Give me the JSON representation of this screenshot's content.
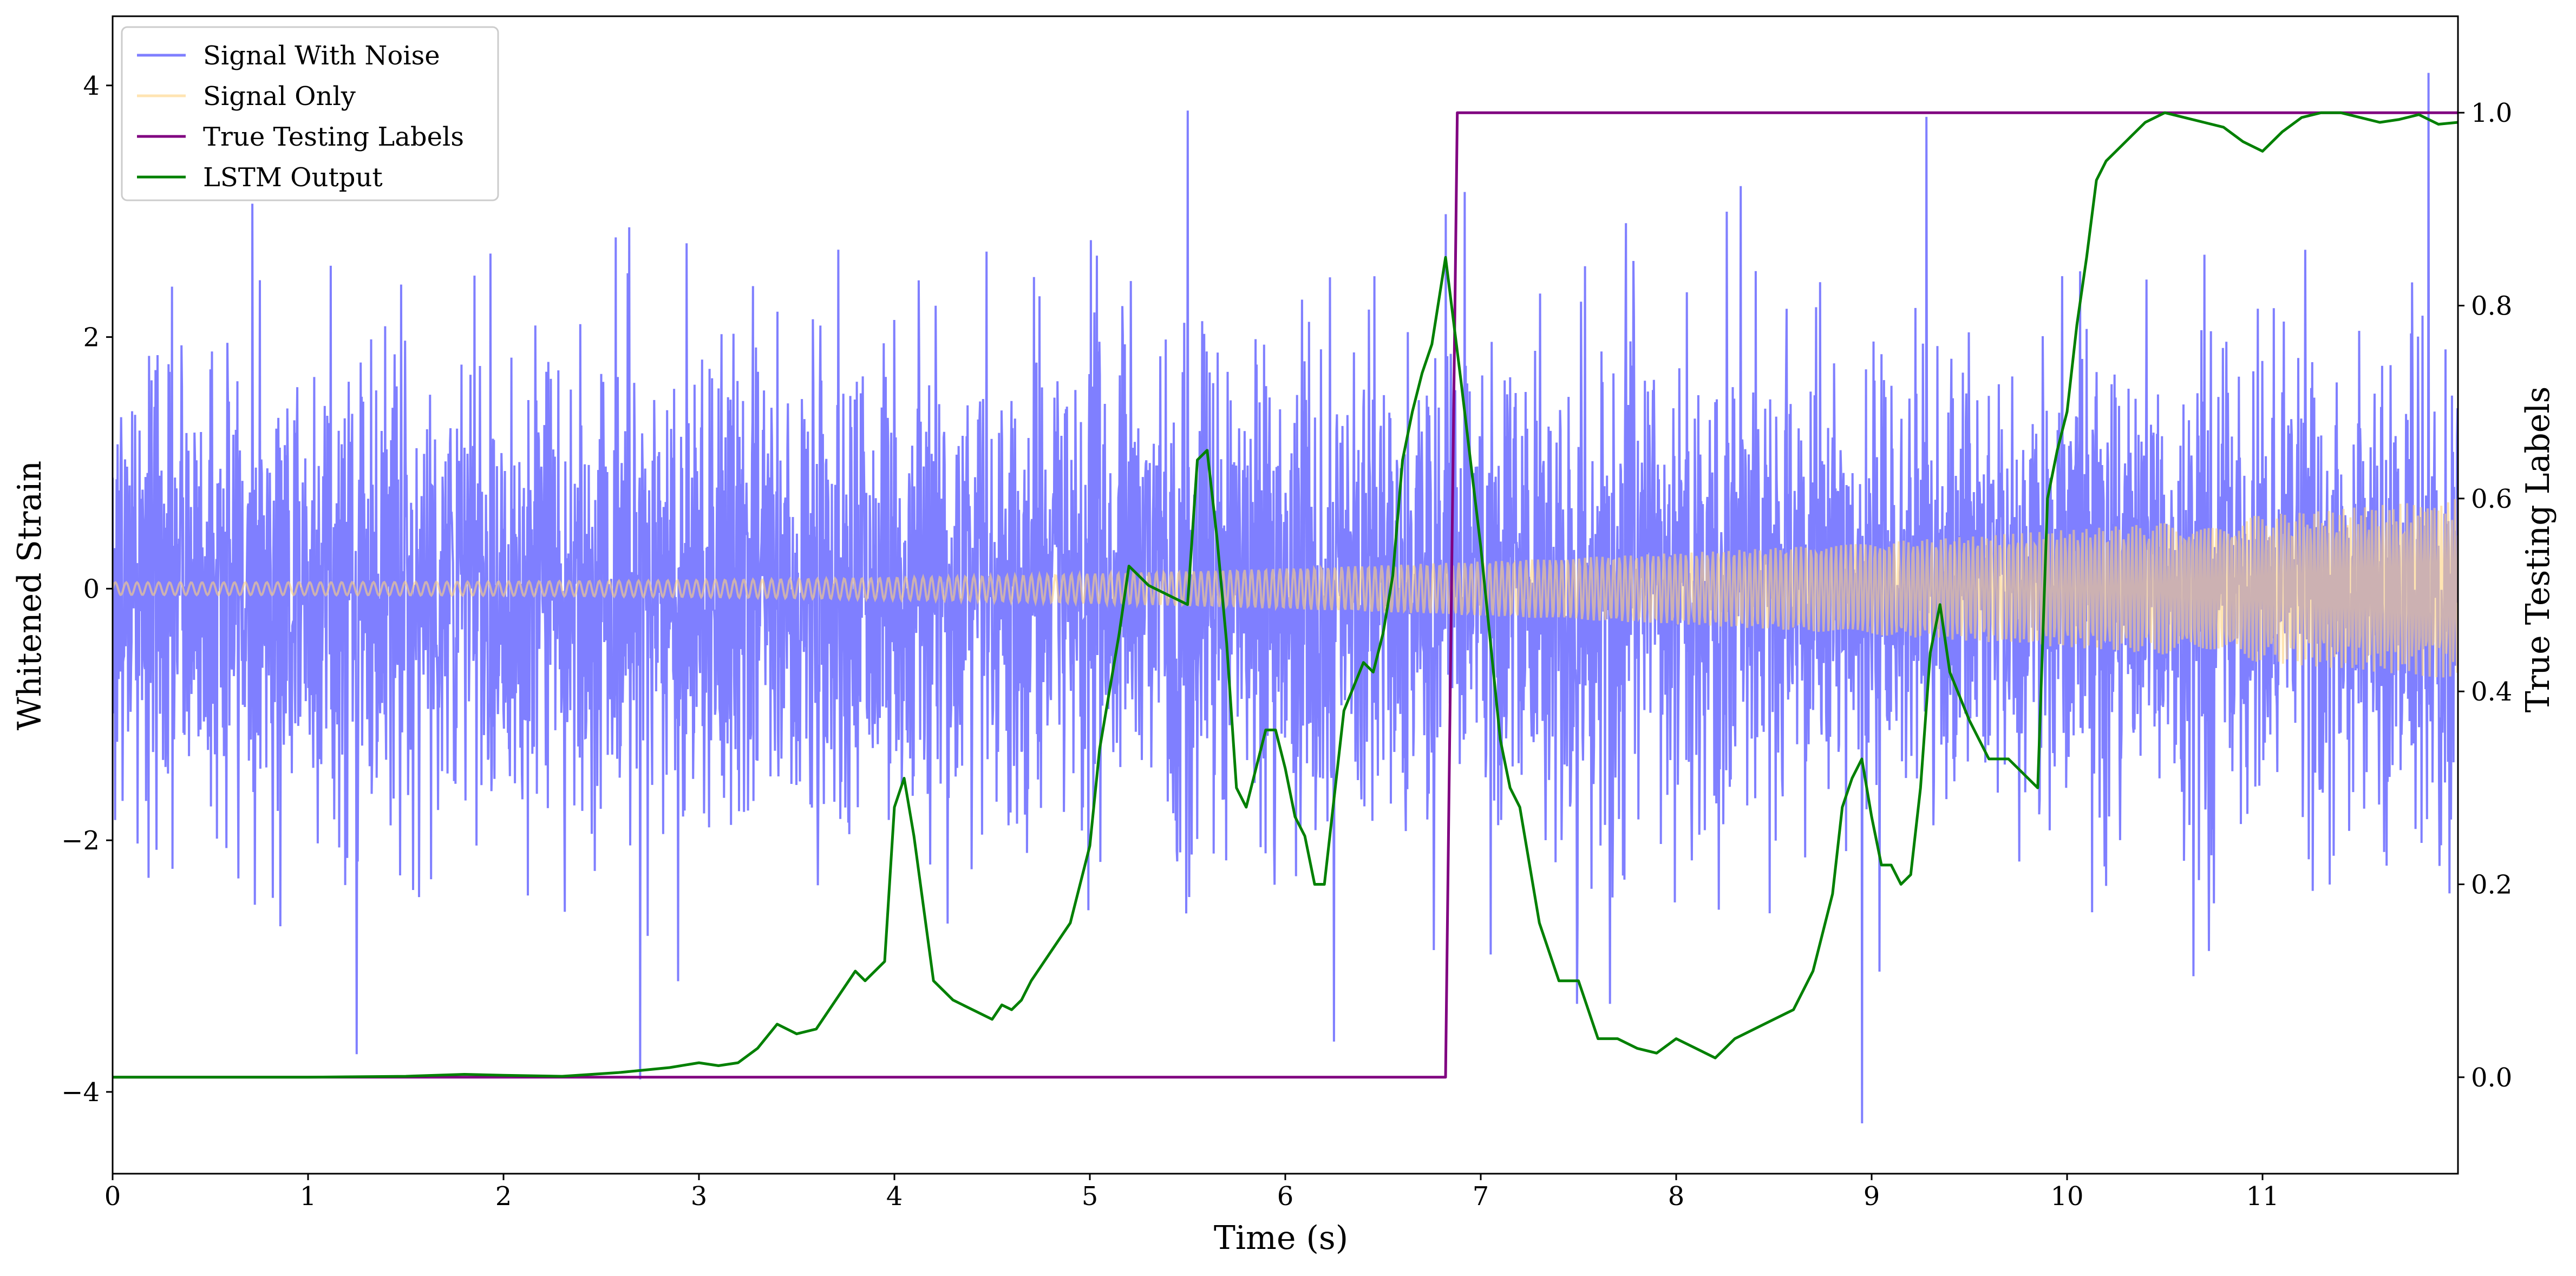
{
  "chart_data": {
    "type": "line",
    "title": "",
    "xlabel": "Time (s)",
    "ylabel": "Whitened Strain",
    "y2label": "True Testing Labels",
    "xlim": [
      0,
      12
    ],
    "ylim": [
      -4.65,
      4.55
    ],
    "y2lim": [
      -0.1,
      1.1
    ],
    "x_ticks": [
      0,
      1,
      2,
      3,
      4,
      5,
      6,
      7,
      8,
      9,
      10,
      11
    ],
    "y_ticks": [
      -4,
      -2,
      0,
      2,
      4
    ],
    "y2_ticks": [
      0.0,
      0.2,
      0.4,
      0.6,
      0.8,
      1.0
    ],
    "grid": false,
    "legend_position": "top-left",
    "legend": [
      "Signal With Noise",
      "Signal Only",
      "True Testing Labels",
      "LSTM Output"
    ],
    "series": [
      {
        "name": "Signal With Noise",
        "axis": "left",
        "color": "#7f7fff",
        "kind": "noisy_strain",
        "approx_std": 0.95,
        "y_range_observed": [
          -4.25,
          4.1
        ],
        "spikes": [
          {
            "x": 1.25,
            "y": -3.7
          },
          {
            "x": 2.7,
            "y": -3.9
          },
          {
            "x": 5.5,
            "y": 3.8
          },
          {
            "x": 6.25,
            "y": -3.6
          },
          {
            "x": 8.33,
            "y": 3.2
          },
          {
            "x": 8.95,
            "y": -4.25
          },
          {
            "x": 9.28,
            "y": 3.75
          },
          {
            "x": 11.85,
            "y": 4.1
          }
        ]
      },
      {
        "name": "Signal Only",
        "axis": "left",
        "color": "#ffd27f",
        "kind": "chirp",
        "amplitude_start": 0.05,
        "amplitude_end": 0.72
      },
      {
        "name": "True Testing Labels",
        "axis": "right",
        "color": "#800080",
        "x": [
          0,
          6.82,
          6.88,
          12
        ],
        "y": [
          0,
          0,
          1,
          1
        ]
      },
      {
        "name": "LSTM Output",
        "axis": "right",
        "color": "#008000",
        "x": [
          0,
          0.5,
          1.0,
          1.5,
          1.8,
          2.0,
          2.3,
          2.6,
          2.85,
          3.0,
          3.1,
          3.2,
          3.3,
          3.4,
          3.5,
          3.6,
          3.7,
          3.8,
          3.85,
          3.95,
          4.0,
          4.05,
          4.1,
          4.2,
          4.3,
          4.4,
          4.5,
          4.55,
          4.6,
          4.65,
          4.7,
          4.8,
          4.9,
          5.0,
          5.05,
          5.1,
          5.15,
          5.2,
          5.25,
          5.3,
          5.35,
          5.4,
          5.5,
          5.55,
          5.6,
          5.65,
          5.7,
          5.75,
          5.8,
          5.85,
          5.9,
          5.95,
          6.0,
          6.05,
          6.1,
          6.15,
          6.2,
          6.3,
          6.4,
          6.45,
          6.5,
          6.55,
          6.6,
          6.65,
          6.7,
          6.75,
          6.82,
          6.9,
          7.0,
          7.05,
          7.1,
          7.15,
          7.2,
          7.3,
          7.4,
          7.5,
          7.6,
          7.7,
          7.8,
          7.9,
          8.0,
          8.1,
          8.2,
          8.3,
          8.4,
          8.5,
          8.6,
          8.7,
          8.8,
          8.85,
          8.9,
          8.95,
          9.0,
          9.05,
          9.1,
          9.15,
          9.2,
          9.25,
          9.3,
          9.35,
          9.4,
          9.5,
          9.6,
          9.7,
          9.8,
          9.85,
          9.9,
          9.95,
          10.0,
          10.05,
          10.1,
          10.15,
          10.2,
          10.3,
          10.4,
          10.5,
          10.6,
          10.7,
          10.8,
          10.9,
          11.0,
          11.1,
          11.2,
          11.3,
          11.4,
          11.5,
          11.6,
          11.7,
          11.8,
          11.9,
          12.0
        ],
        "y": [
          0.0,
          0.0,
          0.0,
          0.001,
          0.003,
          0.002,
          0.001,
          0.005,
          0.01,
          0.015,
          0.012,
          0.015,
          0.03,
          0.055,
          0.045,
          0.05,
          0.08,
          0.11,
          0.1,
          0.12,
          0.28,
          0.31,
          0.25,
          0.1,
          0.08,
          0.07,
          0.06,
          0.075,
          0.07,
          0.08,
          0.1,
          0.13,
          0.16,
          0.24,
          0.34,
          0.4,
          0.46,
          0.53,
          0.52,
          0.51,
          0.505,
          0.5,
          0.49,
          0.64,
          0.65,
          0.56,
          0.45,
          0.3,
          0.28,
          0.32,
          0.36,
          0.36,
          0.32,
          0.27,
          0.25,
          0.2,
          0.2,
          0.38,
          0.43,
          0.42,
          0.46,
          0.52,
          0.64,
          0.69,
          0.73,
          0.76,
          0.85,
          0.72,
          0.55,
          0.45,
          0.35,
          0.3,
          0.28,
          0.16,
          0.1,
          0.1,
          0.04,
          0.04,
          0.03,
          0.025,
          0.04,
          0.03,
          0.02,
          0.04,
          0.05,
          0.06,
          0.07,
          0.11,
          0.19,
          0.28,
          0.31,
          0.33,
          0.27,
          0.22,
          0.22,
          0.2,
          0.21,
          0.3,
          0.44,
          0.49,
          0.42,
          0.37,
          0.33,
          0.33,
          0.31,
          0.3,
          0.6,
          0.65,
          0.69,
          0.78,
          0.85,
          0.93,
          0.95,
          0.97,
          0.99,
          1.0,
          0.995,
          0.99,
          0.985,
          0.97,
          0.96,
          0.98,
          0.995,
          1.0,
          1.0,
          0.995,
          0.99,
          0.993,
          0.998,
          0.988,
          0.99
        ]
      }
    ]
  }
}
